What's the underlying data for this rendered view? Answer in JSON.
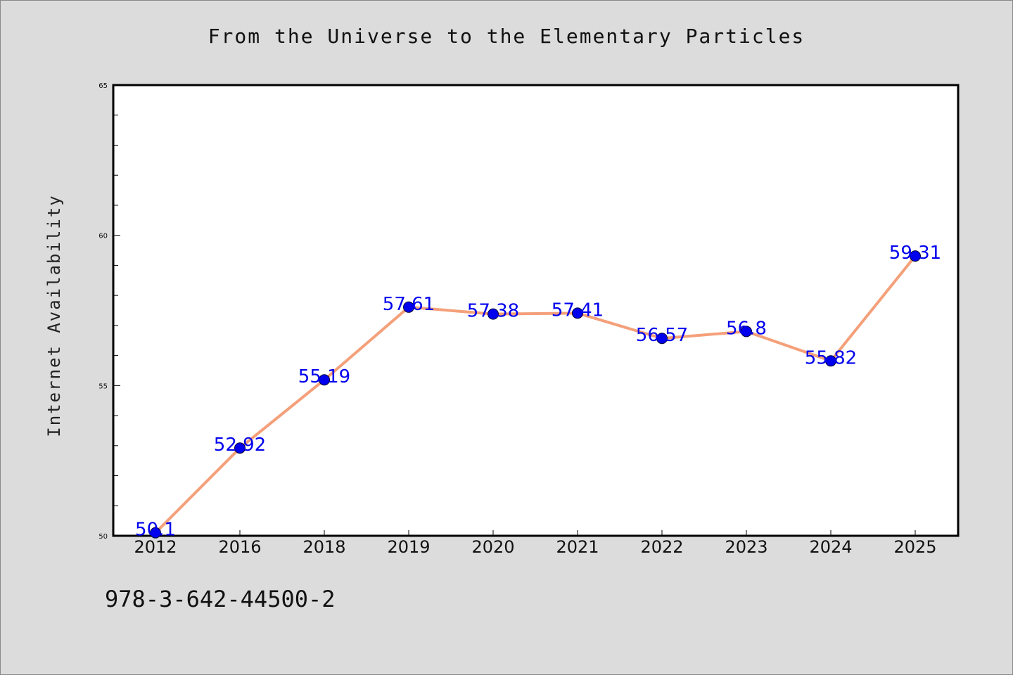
{
  "colors": {
    "background": "#dcdcdc",
    "plot_background": "#ffffff",
    "line": "#f4a07a",
    "marker": "#0000ee",
    "data_label": "#0000ee",
    "axis": "#000000"
  },
  "footer_code": "978-3-642-44500-2",
  "chart_data": {
    "type": "line",
    "title": "From the Universe to the Elementary Particles",
    "xlabel": "",
    "ylabel": "Internet Availability",
    "categories": [
      "2012",
      "2016",
      "2018",
      "2019",
      "2020",
      "2021",
      "2022",
      "2023",
      "2024",
      "2025"
    ],
    "series": [
      {
        "values": [
          50.1,
          52.92,
          55.19,
          57.61,
          57.38,
          57.41,
          56.57,
          56.8,
          55.82,
          59.31
        ],
        "labels": [
          "50.1",
          "52.92",
          "55.19",
          "57.61",
          "57.38",
          "57.41",
          "56.57",
          "56.8",
          "55.82",
          "59.31"
        ]
      }
    ],
    "ylim": [
      50,
      65
    ],
    "yticks": [
      50,
      55,
      60,
      65
    ],
    "y_minor_step": 1,
    "grid": false,
    "legend": "none"
  }
}
